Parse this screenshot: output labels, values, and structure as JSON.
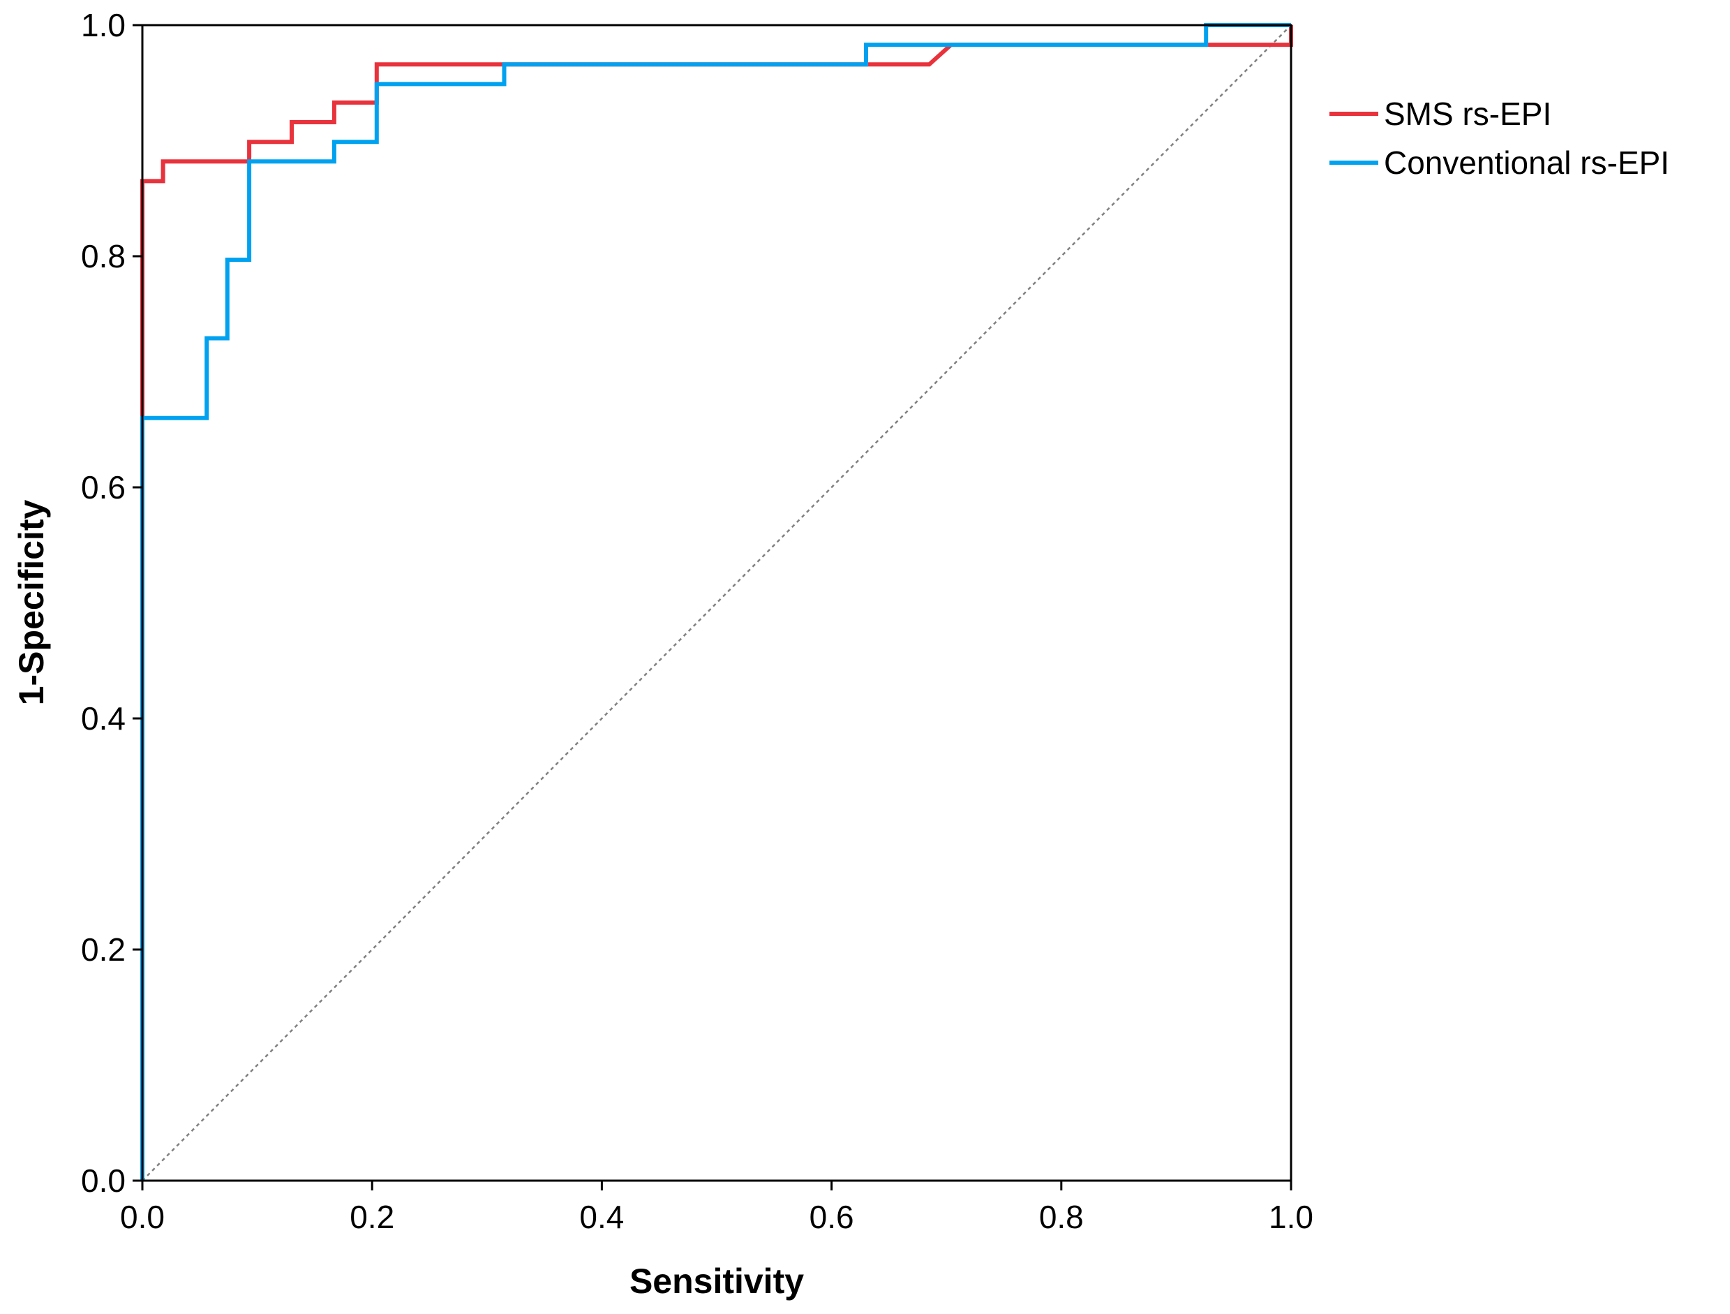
{
  "chart_data": {
    "type": "line",
    "title": "",
    "xlabel": "Sensitivity",
    "ylabel": "1-Specificity",
    "xlim": [
      0,
      1
    ],
    "ylim": [
      0,
      1
    ],
    "x_ticks": [
      "0.0",
      "0.2",
      "0.4",
      "0.6",
      "0.8",
      "1.0"
    ],
    "y_ticks": [
      "0.0",
      "0.2",
      "0.4",
      "0.6",
      "0.8",
      "1.0"
    ],
    "grid": false,
    "legend_position": "right-top",
    "reference_line": {
      "name": "reference",
      "x": [
        0,
        1
      ],
      "y": [
        0,
        1
      ],
      "style": "dotted",
      "color": "#808080"
    },
    "series": [
      {
        "name": "SMS rs-EPI",
        "color": "#e8323c",
        "x": [
          0,
          0,
          0,
          0.018,
          0.018,
          0.093,
          0.093,
          0.13,
          0.13,
          0.167,
          0.167,
          0.204,
          0.204,
          0.315,
          0.63,
          0.685,
          0.704,
          0.926,
          1.0,
          1.0
        ],
        "y": [
          0,
          0.66,
          0.865,
          0.865,
          0.882,
          0.882,
          0.899,
          0.899,
          0.916,
          0.916,
          0.933,
          0.933,
          0.966,
          0.966,
          0.966,
          0.966,
          0.983,
          0.983,
          0.983,
          1.0
        ]
      },
      {
        "name": "Conventional rs-EPI",
        "color": "#00a2f0",
        "x": [
          0,
          0,
          0.056,
          0.056,
          0.074,
          0.074,
          0.093,
          0.093,
          0.167,
          0.167,
          0.204,
          0.204,
          0.315,
          0.315,
          0.63,
          0.63,
          0.926,
          0.926,
          1.0
        ],
        "y": [
          0,
          0.66,
          0.66,
          0.729,
          0.729,
          0.797,
          0.797,
          0.882,
          0.882,
          0.899,
          0.899,
          0.949,
          0.949,
          0.966,
          0.966,
          0.983,
          0.983,
          1.0,
          1.0
        ]
      }
    ]
  }
}
